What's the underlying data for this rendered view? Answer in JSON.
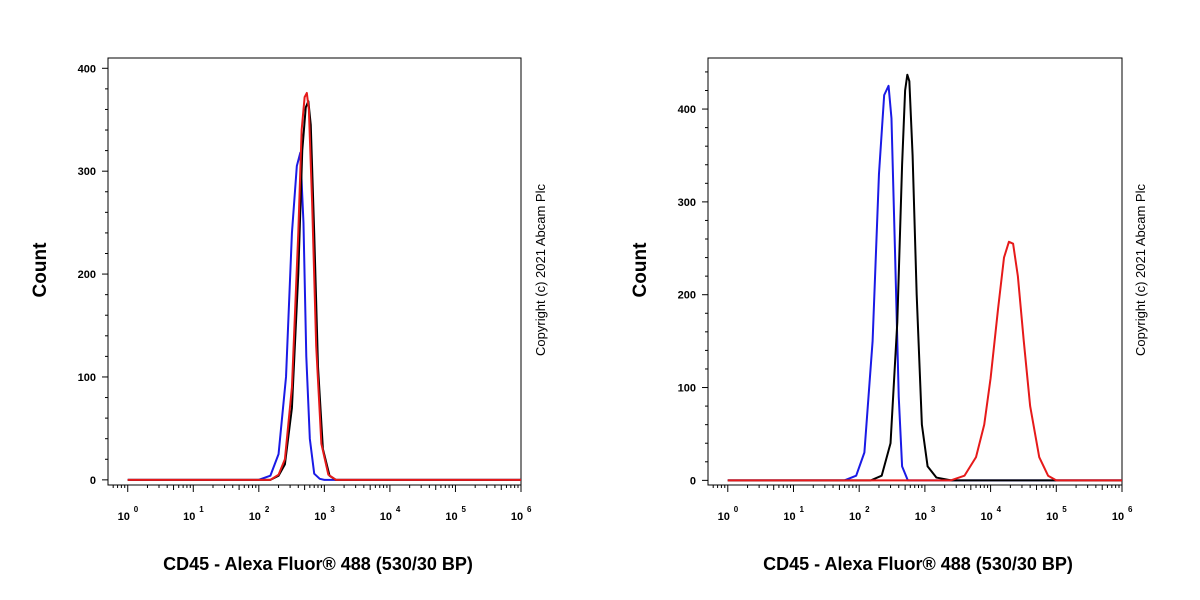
{
  "chart_data": [
    {
      "type": "line",
      "title": "",
      "xlabel": "CD45 - Alexa Fluor® 488 (530/30 BP)",
      "ylabel": "Count",
      "xscale": "log",
      "xlim": [
        0.5,
        1000000
      ],
      "ylim": [
        -5,
        410
      ],
      "yticks": [
        0,
        100,
        200,
        300,
        400
      ],
      "xtick_bases": [
        "10",
        "10",
        "10",
        "10",
        "10",
        "10",
        "10"
      ],
      "xtick_exponents": [
        "0",
        "1",
        "2",
        "3",
        "4",
        "5",
        "6"
      ],
      "copyright": "Copyright (c) 2021 Abcam Plc",
      "series": [
        {
          "color": "#1a1ae6",
          "x": [
            1,
            100,
            150,
            200,
            260,
            320,
            380,
            430,
            480,
            530,
            600,
            700,
            850,
            1000,
            1000000
          ],
          "y": [
            0,
            0,
            4,
            25,
            100,
            240,
            305,
            318,
            250,
            120,
            40,
            6,
            1,
            0,
            0
          ]
        },
        {
          "color": "#000000",
          "x": [
            1,
            150,
            200,
            250,
            320,
            400,
            460,
            520,
            570,
            620,
            700,
            800,
            950,
            1200,
            1500,
            1000000
          ],
          "y": [
            0,
            0,
            4,
            15,
            70,
            200,
            320,
            362,
            368,
            345,
            240,
            110,
            30,
            4,
            0,
            0
          ]
        },
        {
          "color": "#e61a1a",
          "x": [
            1,
            150,
            200,
            250,
            320,
            400,
            450,
            500,
            540,
            580,
            650,
            750,
            900,
            1150,
            1500,
            1000000
          ],
          "y": [
            0,
            0,
            5,
            20,
            90,
            240,
            340,
            372,
            376,
            360,
            270,
            130,
            35,
            5,
            0,
            0
          ]
        }
      ]
    },
    {
      "type": "line",
      "title": "",
      "xlabel": "CD45 - Alexa Fluor® 488 (530/30 BP)",
      "ylabel": "Count",
      "xscale": "log",
      "xlim": [
        0.5,
        1000000
      ],
      "ylim": [
        -5,
        455
      ],
      "yticks": [
        0,
        100,
        200,
        300,
        400
      ],
      "xtick_bases": [
        "10",
        "10",
        "10",
        "10",
        "10",
        "10",
        "10"
      ],
      "xtick_exponents": [
        "0",
        "1",
        "2",
        "3",
        "4",
        "5",
        "6"
      ],
      "copyright": "Copyright (c) 2021 Abcam Plc",
      "series": [
        {
          "color": "#1a1ae6",
          "x": [
            1,
            60,
            90,
            120,
            160,
            200,
            240,
            280,
            310,
            350,
            400,
            450,
            550,
            1000000
          ],
          "y": [
            0,
            0,
            5,
            30,
            150,
            330,
            415,
            425,
            390,
            250,
            90,
            15,
            0,
            0
          ]
        },
        {
          "color": "#000000",
          "x": [
            1,
            150,
            220,
            300,
            380,
            450,
            500,
            540,
            580,
            650,
            750,
            900,
            1100,
            1500,
            2500,
            1000000
          ],
          "y": [
            0,
            0,
            5,
            40,
            170,
            340,
            420,
            437,
            430,
            350,
            200,
            60,
            15,
            3,
            0,
            0
          ]
        },
        {
          "color": "#e61a1a",
          "x": [
            1,
            2500,
            4000,
            6000,
            8000,
            10000,
            13000,
            16000,
            19000,
            22000,
            26000,
            32000,
            40000,
            55000,
            75000,
            100000,
            1000000
          ],
          "y": [
            0,
            0,
            5,
            25,
            60,
            110,
            185,
            240,
            257,
            255,
            220,
            150,
            80,
            25,
            5,
            0,
            0
          ]
        }
      ]
    }
  ]
}
